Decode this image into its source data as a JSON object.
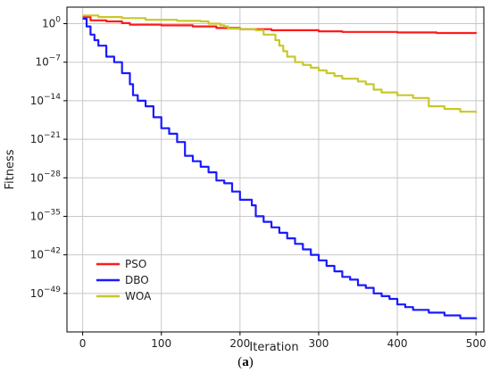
{
  "chart_data": {
    "type": "line",
    "xlabel": "Iteration",
    "ylabel": "Fitness",
    "xlim": [
      -20,
      510
    ],
    "ylim_log10": [
      -56,
      3
    ],
    "y_scale": "log",
    "grid": true,
    "legend_position": "lower-left",
    "x_ticks": [
      0,
      100,
      200,
      300,
      400,
      500
    ],
    "y_ticks": [
      {
        "exp": 0,
        "base": "10",
        "sup": "0"
      },
      {
        "exp": -7,
        "base": "10",
        "sup": "−7"
      },
      {
        "exp": -14,
        "base": "10",
        "sup": "−14"
      },
      {
        "exp": -21,
        "base": "10",
        "sup": "−21"
      },
      {
        "exp": -28,
        "base": "10",
        "sup": "−28"
      },
      {
        "exp": -35,
        "base": "10",
        "sup": "−35"
      },
      {
        "exp": -42,
        "base": "10",
        "sup": "−42"
      },
      {
        "exp": -49,
        "base": "10",
        "sup": "−49"
      }
    ],
    "series": [
      {
        "name": "PSO",
        "color": "#ff1a1a",
        "log10_y": [
          [
            0,
            1.2
          ],
          [
            10,
            0.6
          ],
          [
            30,
            0.4
          ],
          [
            50,
            0.1
          ],
          [
            60,
            -0.2
          ],
          [
            100,
            -0.3
          ],
          [
            140,
            -0.5
          ],
          [
            170,
            -0.8
          ],
          [
            200,
            -1.0
          ],
          [
            240,
            -1.2
          ],
          [
            300,
            -1.4
          ],
          [
            330,
            -1.5
          ],
          [
            400,
            -1.6
          ],
          [
            450,
            -1.7
          ],
          [
            500,
            -1.8
          ]
        ]
      },
      {
        "name": "DBO",
        "color": "#1a1aff",
        "log10_y": [
          [
            0,
            0.9
          ],
          [
            5,
            -0.5
          ],
          [
            10,
            -2
          ],
          [
            15,
            -3
          ],
          [
            20,
            -4
          ],
          [
            30,
            -6
          ],
          [
            40,
            -7
          ],
          [
            50,
            -9
          ],
          [
            60,
            -11
          ],
          [
            64,
            -13
          ],
          [
            70,
            -14
          ],
          [
            80,
            -15
          ],
          [
            90,
            -17
          ],
          [
            100,
            -19
          ],
          [
            110,
            -20
          ],
          [
            120,
            -21.5
          ],
          [
            130,
            -24
          ],
          [
            140,
            -25
          ],
          [
            150,
            -26
          ],
          [
            160,
            -27
          ],
          [
            170,
            -28.5
          ],
          [
            180,
            -29
          ],
          [
            190,
            -30.5
          ],
          [
            200,
            -32
          ],
          [
            215,
            -33
          ],
          [
            220,
            -35
          ],
          [
            230,
            -36
          ],
          [
            240,
            -37
          ],
          [
            250,
            -38
          ],
          [
            260,
            -39
          ],
          [
            270,
            -40
          ],
          [
            280,
            -41
          ],
          [
            290,
            -42
          ],
          [
            300,
            -43
          ],
          [
            310,
            -44
          ],
          [
            320,
            -45
          ],
          [
            330,
            -46
          ],
          [
            340,
            -46.5
          ],
          [
            350,
            -47.5
          ],
          [
            360,
            -48
          ],
          [
            370,
            -49
          ],
          [
            380,
            -49.5
          ],
          [
            390,
            -50
          ],
          [
            400,
            -51
          ],
          [
            410,
            -51.5
          ],
          [
            420,
            -52
          ],
          [
            440,
            -52.5
          ],
          [
            460,
            -53
          ],
          [
            480,
            -53.5
          ],
          [
            500,
            -53.7
          ]
        ]
      },
      {
        "name": "WOA",
        "color": "#c8c82a",
        "log10_y": [
          [
            0,
            1.5
          ],
          [
            20,
            1.2
          ],
          [
            50,
            1.0
          ],
          [
            80,
            0.7
          ],
          [
            120,
            0.5
          ],
          [
            150,
            0.4
          ],
          [
            160,
            0
          ],
          [
            175,
            -0.3
          ],
          [
            180,
            -0.5
          ],
          [
            185,
            -0.9
          ],
          [
            200,
            -1.0
          ],
          [
            220,
            -1.2
          ],
          [
            230,
            -2
          ],
          [
            245,
            -3
          ],
          [
            250,
            -4
          ],
          [
            255,
            -5
          ],
          [
            260,
            -6
          ],
          [
            270,
            -7
          ],
          [
            280,
            -7.5
          ],
          [
            290,
            -8
          ],
          [
            300,
            -8.5
          ],
          [
            310,
            -9
          ],
          [
            320,
            -9.5
          ],
          [
            330,
            -10
          ],
          [
            350,
            -10.5
          ],
          [
            360,
            -11
          ],
          [
            370,
            -12
          ],
          [
            380,
            -12.5
          ],
          [
            400,
            -13
          ],
          [
            420,
            -13.5
          ],
          [
            440,
            -15
          ],
          [
            460,
            -15.5
          ],
          [
            480,
            -16
          ],
          [
            500,
            -16.2
          ]
        ]
      }
    ]
  },
  "caption": {
    "open": "(",
    "letter": "a",
    "close": ")"
  }
}
